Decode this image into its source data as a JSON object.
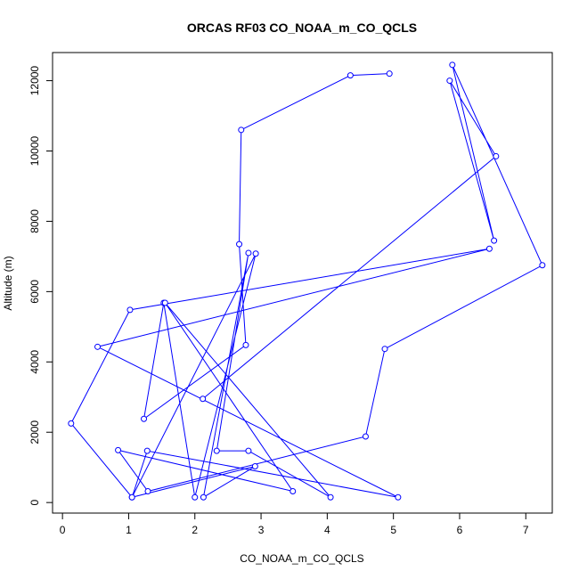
{
  "chart_data": {
    "type": "line",
    "title": "ORCAS RF03 CO_NOAA_m_CO_QCLS",
    "xlabel": "CO_NOAA_m_CO_QCLS",
    "ylabel": "Altitude (m)",
    "xlim": [
      -0.15,
      7.4
    ],
    "ylim": [
      -300,
      12800
    ],
    "xticks": [
      0,
      1,
      2,
      3,
      4,
      5,
      6,
      7
    ],
    "yticks": [
      0,
      2000,
      4000,
      6000,
      8000,
      10000,
      12000
    ],
    "grid": false,
    "line_color": "#0000ff",
    "marker": "open-circle",
    "series": [
      {
        "x": [
          4.94,
          4.35,
          2.7,
          2.67,
          2.77,
          1.23,
          1.53,
          2.0,
          2.92,
          1.05,
          0.13,
          1.02,
          6.45,
          0.53,
          5.07,
          1.28,
          1.05,
          2.91,
          2.13,
          2.81,
          2.33,
          2.81,
          4.05,
          1.55,
          3.48,
          0.84,
          1.29,
          4.58,
          4.87,
          7.25,
          5.89,
          6.52,
          5.85,
          6.55,
          2.12
        ],
        "y": [
          12200,
          12150,
          10600,
          7350,
          4480,
          2380,
          5680,
          150,
          7080,
          150,
          2250,
          5480,
          7220,
          4430,
          150,
          1470,
          150,
          1030,
          150,
          7100,
          1470,
          1470,
          150,
          5680,
          320,
          1490,
          320,
          1880,
          4370,
          6750,
          12450,
          7450,
          12000,
          9850,
          2950
        ]
      }
    ]
  }
}
